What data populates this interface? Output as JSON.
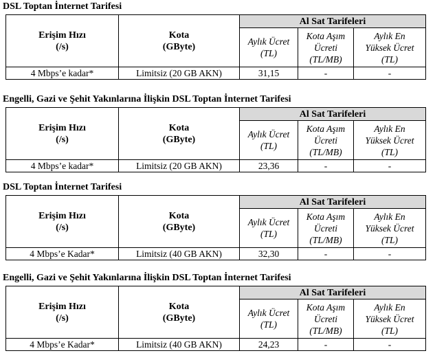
{
  "sections": [
    {
      "title": "DSL Toptan İnternet Tarifesi",
      "col_speed": [
        "Erişim Hızı",
        "(/s)"
      ],
      "col_quota": [
        "Kota",
        "(GByte)"
      ],
      "group_head": "Al Sat Tarifeleri",
      "sub_monthly": [
        "Aylık Ücret",
        "(TL)"
      ],
      "sub_overage": [
        "Kota Aşım",
        "Ücreti",
        "(TL/MB)"
      ],
      "sub_max": [
        "Aylık En",
        "Yüksek Ücret",
        "(TL)"
      ],
      "row": {
        "speed": "4 Mbps’e kadar*",
        "quota": "Limitsiz (20 GB AKN)",
        "monthly": "31,15",
        "overage": "-",
        "max": "-"
      }
    },
    {
      "title": "Engelli, Gazi ve Şehit Yakınlarına İlişkin DSL Toptan İnternet Tarifesi",
      "col_speed": [
        "Erişim Hızı",
        "(/s)"
      ],
      "col_quota": [
        "Kota",
        "(GByte)"
      ],
      "group_head": "Al Sat Tarifeleri",
      "sub_monthly": [
        "Aylık Ücret",
        "(TL)"
      ],
      "sub_overage": [
        "Kota Aşım",
        "Ücreti",
        "(TL/MB)"
      ],
      "sub_max": [
        "Aylık En",
        "Yüksek Ücret",
        "(TL)"
      ],
      "row": {
        "speed": "4 Mbps’e kadar*",
        "quota": "Limitsiz (20 GB AKN)",
        "monthly": "23,36",
        "overage": "-",
        "max": "-"
      }
    },
    {
      "title": "DSL Toptan İnternet Tarifesi",
      "col_speed": [
        "Erişim Hızı",
        "(/s)"
      ],
      "col_quota": [
        "Kota",
        "(GByte)"
      ],
      "group_head": "Al Sat Tarifeleri",
      "sub_monthly": [
        "Aylık Ücret",
        "(TL)"
      ],
      "sub_overage": [
        "Kota Aşım",
        "Ücreti",
        "(TL/MB)"
      ],
      "sub_max": [
        "Aylık En",
        "Yüksek Ücret",
        "(TL)"
      ],
      "row": {
        "speed": "4 Mbps’e Kadar*",
        "quota": "Limitsiz (40 GB AKN)",
        "monthly": "32,30",
        "overage": "-",
        "max": "-"
      }
    },
    {
      "title": "Engelli, Gazi ve Şehit Yakınlarına İlişkin DSL Toptan İnternet Tarifesi",
      "col_speed": [
        "Erişim Hızı",
        "(/s)"
      ],
      "col_quota": [
        "Kota",
        "(GByte)"
      ],
      "group_head": "Al Sat Tarifeleri",
      "sub_monthly": [
        "Aylık Ücret",
        "(TL)"
      ],
      "sub_overage": [
        "Kota Aşım",
        "Ücreti",
        "(TL/MB)"
      ],
      "sub_max": [
        "Aylık En",
        "Yüksek Ücret",
        "(TL)"
      ],
      "row": {
        "speed": "4 Mbps’e Kadar*",
        "quota": "Limitsiz (40 GB AKN)",
        "monthly": "24,23",
        "overage": "-",
        "max": "-"
      }
    }
  ]
}
